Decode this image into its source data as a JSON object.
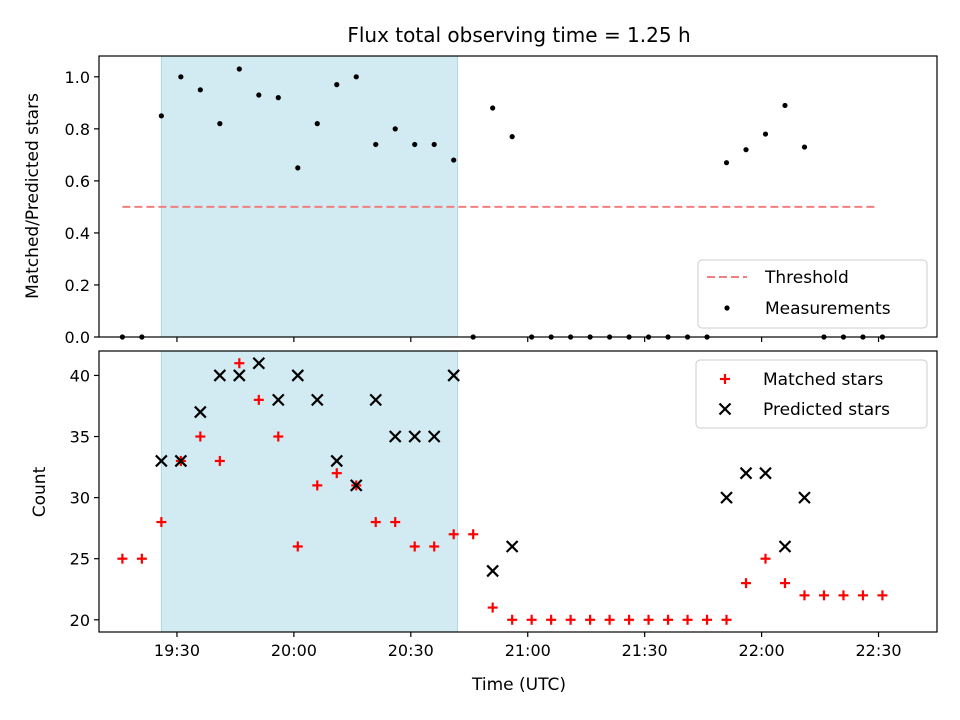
{
  "title": "Flux total observing time = 1.25 h",
  "chart_data": [
    {
      "type": "scatter",
      "ylabel": "Matched/Predicted stars",
      "xlim": [
        "19:10",
        "22:45"
      ],
      "ylim": [
        0.0,
        1.08
      ],
      "yticks": [
        "0.0",
        "0.2",
        "0.4",
        "0.6",
        "0.8",
        "1.0"
      ],
      "xticks_unlabeled": [
        "19:30",
        "20:00",
        "20:30",
        "21:00",
        "21:30",
        "22:00",
        "22:30"
      ],
      "shaded_span": {
        "from": "19:26",
        "to": "20:42",
        "color": "#add8e6"
      },
      "threshold": {
        "name": "Threshold",
        "y": 0.5,
        "from": "19:16",
        "to": "22:29",
        "color": "#f08080"
      },
      "legend": {
        "placement": "lower right",
        "entries": [
          "Threshold",
          "Measurements"
        ]
      },
      "series": [
        {
          "name": "Measurements",
          "color": "#000000",
          "points": [
            [
              "19:16",
              0.0
            ],
            [
              "19:21",
              0.0
            ],
            [
              "19:26",
              0.85
            ],
            [
              "19:31",
              1.0
            ],
            [
              "19:36",
              0.95
            ],
            [
              "19:41",
              0.82
            ],
            [
              "19:46",
              1.03
            ],
            [
              "19:51",
              0.93
            ],
            [
              "19:56",
              0.92
            ],
            [
              "20:01",
              0.65
            ],
            [
              "20:06",
              0.82
            ],
            [
              "20:11",
              0.97
            ],
            [
              "20:16",
              1.0
            ],
            [
              "20:21",
              0.74
            ],
            [
              "20:26",
              0.8
            ],
            [
              "20:31",
              0.74
            ],
            [
              "20:36",
              0.74
            ],
            [
              "20:41",
              0.68
            ],
            [
              "20:46",
              0.0
            ],
            [
              "20:51",
              0.88
            ],
            [
              "20:56",
              0.77
            ],
            [
              "21:01",
              0.0
            ],
            [
              "21:06",
              0.0
            ],
            [
              "21:11",
              0.0
            ],
            [
              "21:16",
              0.0
            ],
            [
              "21:21",
              0.0
            ],
            [
              "21:26",
              0.0
            ],
            [
              "21:31",
              0.0
            ],
            [
              "21:36",
              0.0
            ],
            [
              "21:41",
              0.0
            ],
            [
              "21:46",
              0.0
            ],
            [
              "21:51",
              0.67
            ],
            [
              "21:56",
              0.72
            ],
            [
              "22:01",
              0.78
            ],
            [
              "22:06",
              0.89
            ],
            [
              "22:11",
              0.73
            ],
            [
              "22:16",
              0.0
            ],
            [
              "22:21",
              0.0
            ],
            [
              "22:26",
              0.0
            ],
            [
              "22:31",
              0.0
            ]
          ]
        }
      ]
    },
    {
      "type": "scatter",
      "xlabel": "Time (UTC)",
      "ylabel": "Count",
      "xlim": [
        "19:10",
        "22:45"
      ],
      "ylim": [
        19.0,
        42.0
      ],
      "yticks": [
        "20",
        "25",
        "30",
        "35",
        "40"
      ],
      "xticks": [
        "19:30",
        "20:00",
        "20:30",
        "21:00",
        "21:30",
        "22:00",
        "22:30"
      ],
      "shaded_span": {
        "from": "19:26",
        "to": "20:42",
        "color": "#add8e6"
      },
      "legend": {
        "placement": "upper right",
        "entries": [
          "Matched stars",
          "Predicted stars"
        ]
      },
      "series": [
        {
          "name": "Matched stars",
          "marker": "plus",
          "color": "#ff0000",
          "points": [
            [
              "19:16",
              25
            ],
            [
              "19:21",
              25
            ],
            [
              "19:26",
              28
            ],
            [
              "19:31",
              33
            ],
            [
              "19:36",
              35
            ],
            [
              "19:41",
              33
            ],
            [
              "19:46",
              41
            ],
            [
              "19:51",
              38
            ],
            [
              "19:56",
              35
            ],
            [
              "20:01",
              26
            ],
            [
              "20:06",
              31
            ],
            [
              "20:11",
              32
            ],
            [
              "20:16",
              31
            ],
            [
              "20:21",
              28
            ],
            [
              "20:26",
              28
            ],
            [
              "20:31",
              26
            ],
            [
              "20:36",
              26
            ],
            [
              "20:41",
              27
            ],
            [
              "20:46",
              27
            ],
            [
              "20:51",
              21
            ],
            [
              "20:56",
              20
            ],
            [
              "21:01",
              20
            ],
            [
              "21:06",
              20
            ],
            [
              "21:11",
              20
            ],
            [
              "21:16",
              20
            ],
            [
              "21:21",
              20
            ],
            [
              "21:26",
              20
            ],
            [
              "21:31",
              20
            ],
            [
              "21:36",
              20
            ],
            [
              "21:41",
              20
            ],
            [
              "21:46",
              20
            ],
            [
              "21:51",
              20
            ],
            [
              "21:56",
              23
            ],
            [
              "22:01",
              25
            ],
            [
              "22:06",
              23
            ],
            [
              "22:11",
              22
            ],
            [
              "22:16",
              22
            ],
            [
              "22:21",
              22
            ],
            [
              "22:26",
              22
            ],
            [
              "22:31",
              22
            ]
          ]
        },
        {
          "name": "Predicted stars",
          "marker": "x",
          "color": "#000000",
          "points": [
            [
              "19:26",
              33
            ],
            [
              "19:31",
              33
            ],
            [
              "19:36",
              37
            ],
            [
              "19:41",
              40
            ],
            [
              "19:46",
              40
            ],
            [
              "19:51",
              41
            ],
            [
              "19:56",
              38
            ],
            [
              "20:01",
              40
            ],
            [
              "20:06",
              38
            ],
            [
              "20:11",
              33
            ],
            [
              "20:16",
              31
            ],
            [
              "20:21",
              38
            ],
            [
              "20:26",
              35
            ],
            [
              "20:31",
              35
            ],
            [
              "20:36",
              35
            ],
            [
              "20:41",
              40
            ],
            [
              "20:51",
              24
            ],
            [
              "20:56",
              26
            ],
            [
              "21:51",
              30
            ],
            [
              "21:56",
              32
            ],
            [
              "22:01",
              32
            ],
            [
              "22:06",
              26
            ],
            [
              "22:11",
              30
            ]
          ]
        }
      ]
    }
  ]
}
